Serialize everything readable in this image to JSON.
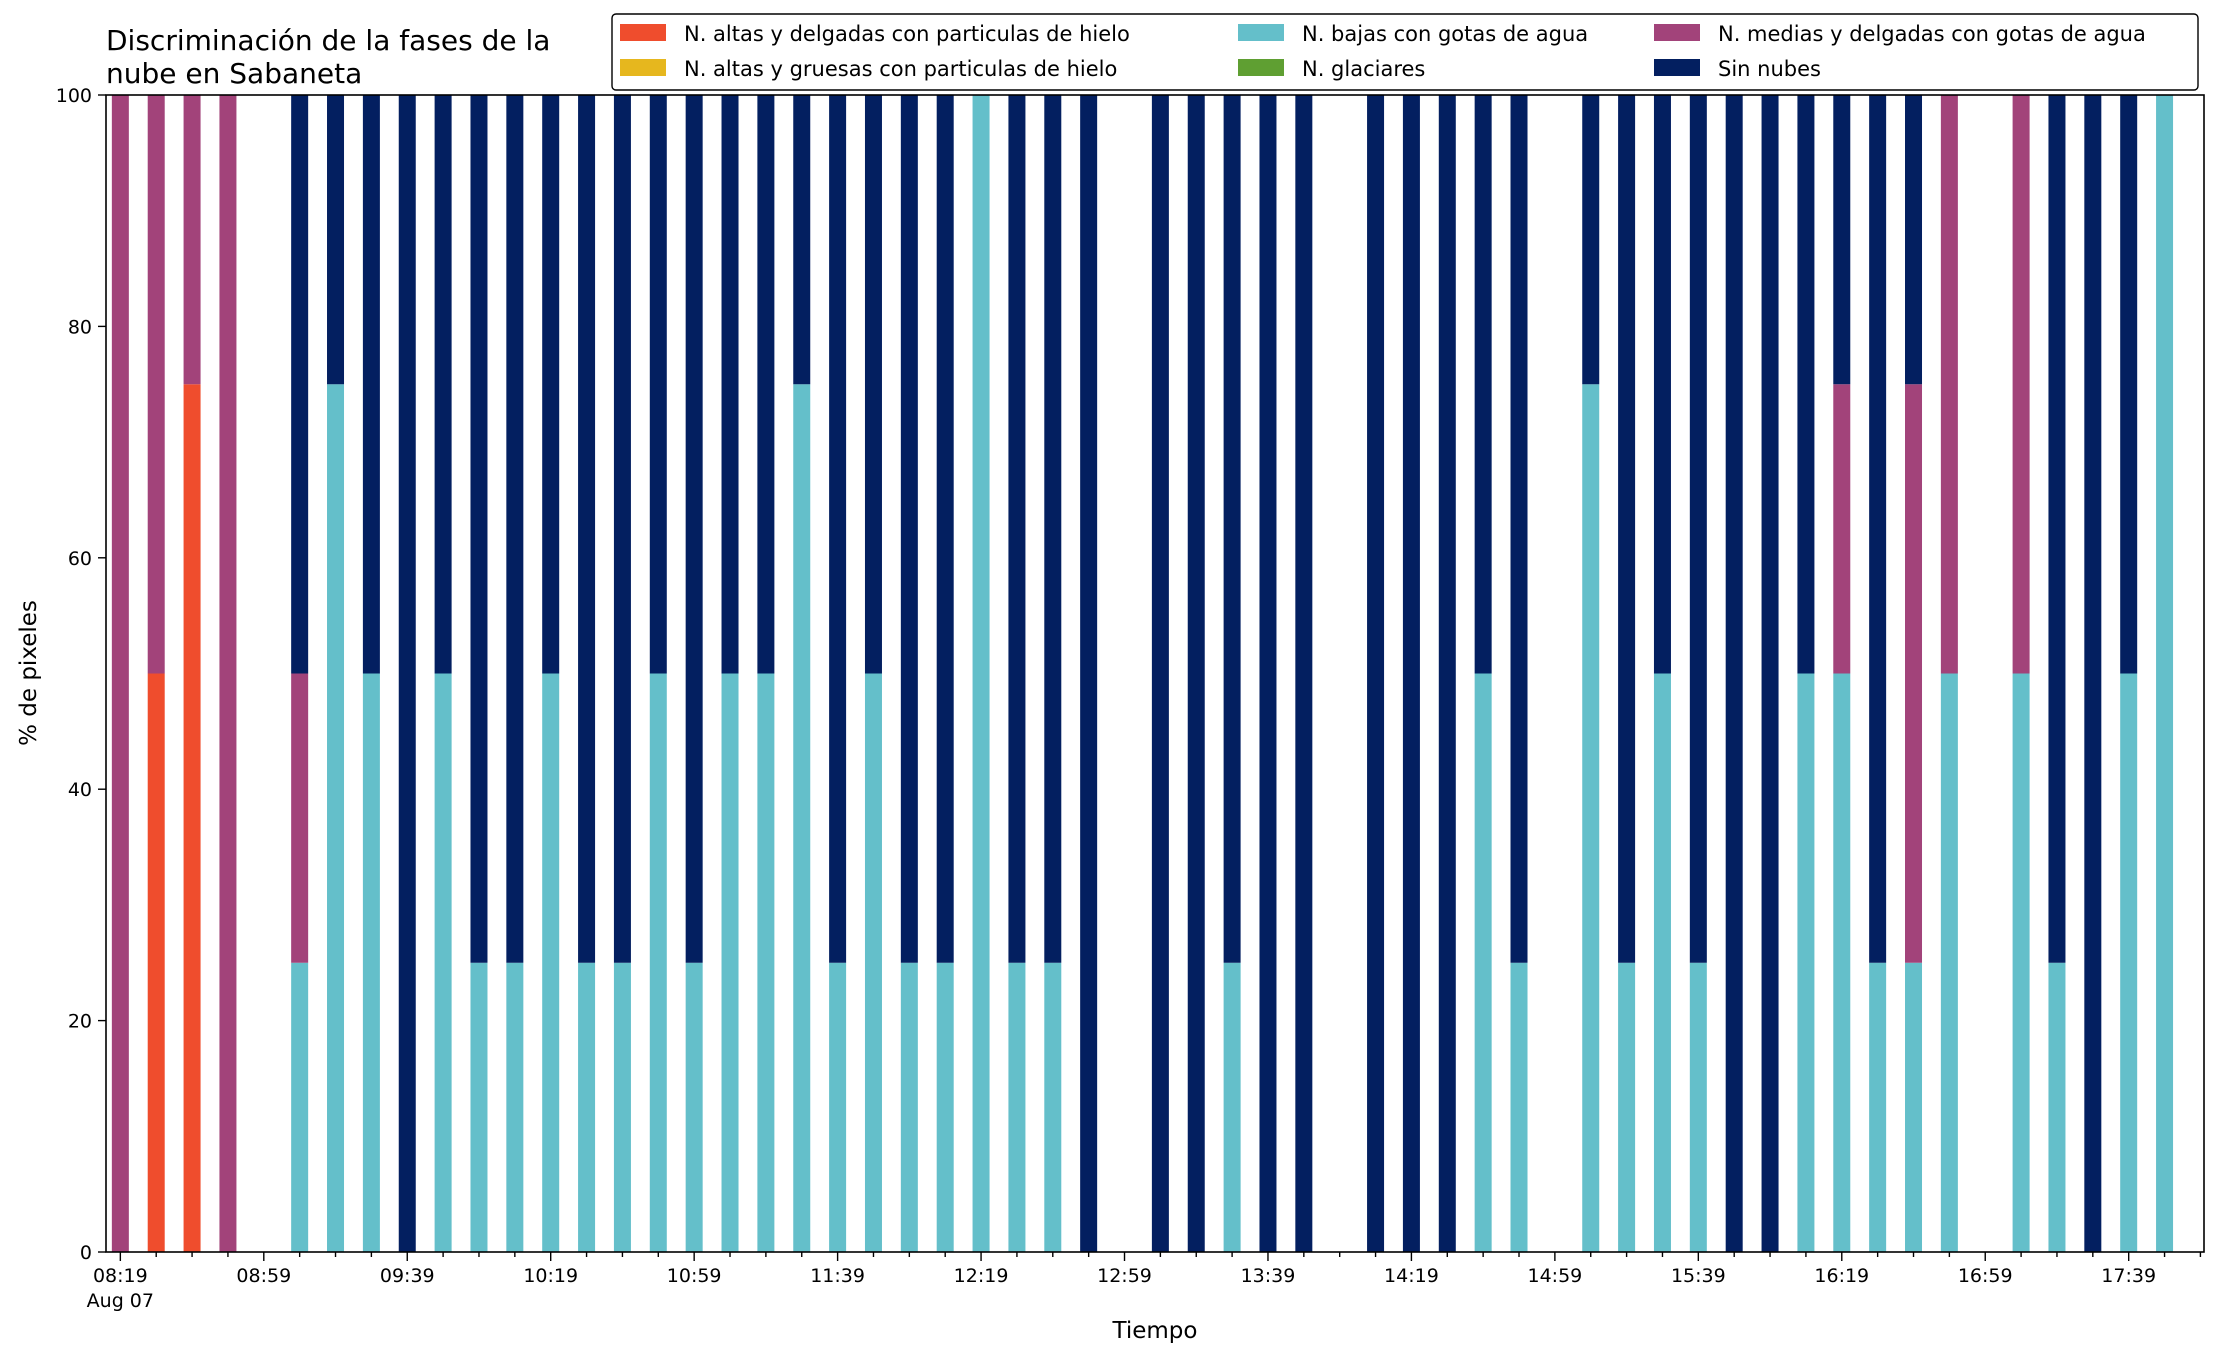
{
  "chart_data": {
    "type": "bar",
    "stacked": true,
    "title_lines": [
      "Discriminación de la fases de la",
      "nube en Sabaneta"
    ],
    "xlabel": "Tiempo",
    "ylabel": "% de pixeles",
    "ylim": [
      0,
      100
    ],
    "yticks": [
      0,
      20,
      40,
      60,
      80,
      100
    ],
    "x_range_minutes": [
      495,
      1080
    ],
    "x_tick_labels": [
      "08:19",
      "08:59",
      "09:39",
      "10:19",
      "10:59",
      "11:39",
      "12:19",
      "12:59",
      "13:39",
      "14:19",
      "14:59",
      "15:39",
      "16:19",
      "16:59",
      "17:39"
    ],
    "x_tick_minutes": [
      499,
      539,
      579,
      619,
      659,
      699,
      739,
      779,
      819,
      859,
      899,
      939,
      979,
      1019,
      1059
    ],
    "x_date_label": "Aug 07",
    "interval_minutes": 10,
    "legend": {
      "placement": "top-right",
      "columns": 3
    },
    "series": [
      {
        "name": "N. altas y delgadas con particulas de hielo",
        "color": "#ef4d2d"
      },
      {
        "name": "N. altas y gruesas con particulas de hielo",
        "color": "#e6b71e"
      },
      {
        "name": "N. bajas con gotas de agua",
        "color": "#64bfca"
      },
      {
        "name": "N. glaciares",
        "color": "#5f9f32"
      },
      {
        "name": "N. medias y delgadas con gotas de agua",
        "color": "#a2437a"
      },
      {
        "name": "Sin nubes",
        "color": "#031f60"
      }
    ],
    "times": [
      "08:19",
      "08:29",
      "08:39",
      "08:49",
      "09:09",
      "09:19",
      "09:29",
      "09:39",
      "09:49",
      "09:59",
      "10:09",
      "10:19",
      "10:29",
      "10:39",
      "10:49",
      "10:59",
      "11:09",
      "11:19",
      "11:29",
      "11:39",
      "11:49",
      "11:59",
      "12:09",
      "12:19",
      "12:29",
      "12:39",
      "12:49",
      "13:09",
      "13:19",
      "13:29",
      "13:39",
      "13:49",
      "14:09",
      "14:19",
      "14:29",
      "14:39",
      "14:49",
      "15:09",
      "15:19",
      "15:29",
      "15:39",
      "15:49",
      "15:59",
      "16:09",
      "16:19",
      "16:29",
      "16:39",
      "16:49",
      "17:09",
      "17:19",
      "17:29",
      "17:39",
      "17:49"
    ],
    "stacks": [
      [
        0,
        0,
        0,
        0,
        100,
        0
      ],
      [
        50,
        0,
        0,
        0,
        50,
        0
      ],
      [
        75,
        0,
        0,
        0,
        25,
        0
      ],
      [
        0,
        0,
        0,
        0,
        100,
        0
      ],
      [
        0,
        0,
        25,
        0,
        25,
        50
      ],
      [
        0,
        0,
        75,
        0,
        0,
        25
      ],
      [
        0,
        0,
        50,
        0,
        0,
        50
      ],
      [
        0,
        0,
        0,
        0,
        0,
        100
      ],
      [
        0,
        0,
        50,
        0,
        0,
        50
      ],
      [
        0,
        0,
        25,
        0,
        0,
        75
      ],
      [
        0,
        0,
        25,
        0,
        0,
        75
      ],
      [
        0,
        0,
        50,
        0,
        0,
        50
      ],
      [
        0,
        0,
        25,
        0,
        0,
        75
      ],
      [
        0,
        0,
        25,
        0,
        0,
        75
      ],
      [
        0,
        0,
        50,
        0,
        0,
        50
      ],
      [
        0,
        0,
        25,
        0,
        0,
        75
      ],
      [
        0,
        0,
        50,
        0,
        0,
        50
      ],
      [
        0,
        0,
        50,
        0,
        0,
        50
      ],
      [
        0,
        0,
        75,
        0,
        0,
        25
      ],
      [
        0,
        0,
        25,
        0,
        0,
        75
      ],
      [
        0,
        0,
        50,
        0,
        0,
        50
      ],
      [
        0,
        0,
        25,
        0,
        0,
        75
      ],
      [
        0,
        0,
        25,
        0,
        0,
        75
      ],
      [
        0,
        0,
        100,
        0,
        0,
        0
      ],
      [
        0,
        0,
        25,
        0,
        0,
        75
      ],
      [
        0,
        0,
        25,
        0,
        0,
        75
      ],
      [
        0,
        0,
        0,
        0,
        0,
        100
      ],
      [
        0,
        0,
        0,
        0,
        0,
        100
      ],
      [
        0,
        0,
        0,
        0,
        0,
        100
      ],
      [
        0,
        0,
        25,
        0,
        0,
        75
      ],
      [
        0,
        0,
        0,
        0,
        0,
        100
      ],
      [
        0,
        0,
        0,
        0,
        0,
        100
      ],
      [
        0,
        0,
        0,
        0,
        0,
        100
      ],
      [
        0,
        0,
        0,
        0,
        0,
        100
      ],
      [
        0,
        0,
        0,
        0,
        0,
        100
      ],
      [
        0,
        0,
        50,
        0,
        0,
        50
      ],
      [
        0,
        0,
        25,
        0,
        0,
        75
      ],
      [
        0,
        0,
        75,
        0,
        0,
        25
      ],
      [
        0,
        0,
        25,
        0,
        0,
        75
      ],
      [
        0,
        0,
        50,
        0,
        0,
        50
      ],
      [
        0,
        0,
        25,
        0,
        0,
        75
      ],
      [
        0,
        0,
        0,
        0,
        0,
        100
      ],
      [
        0,
        0,
        0,
        0,
        0,
        100
      ],
      [
        0,
        0,
        50,
        0,
        0,
        50
      ],
      [
        0,
        0,
        50,
        0,
        25,
        25
      ],
      [
        0,
        0,
        25,
        0,
        0,
        75
      ],
      [
        0,
        0,
        25,
        0,
        50,
        25
      ],
      [
        0,
        0,
        50,
        0,
        50,
        0
      ],
      [
        0,
        0,
        50,
        0,
        50,
        0
      ],
      [
        0,
        0,
        25,
        0,
        0,
        75
      ],
      [
        0,
        0,
        0,
        0,
        0,
        100
      ],
      [
        0,
        0,
        50,
        0,
        0,
        50
      ],
      [
        0,
        0,
        100,
        0,
        0,
        0
      ]
    ]
  }
}
